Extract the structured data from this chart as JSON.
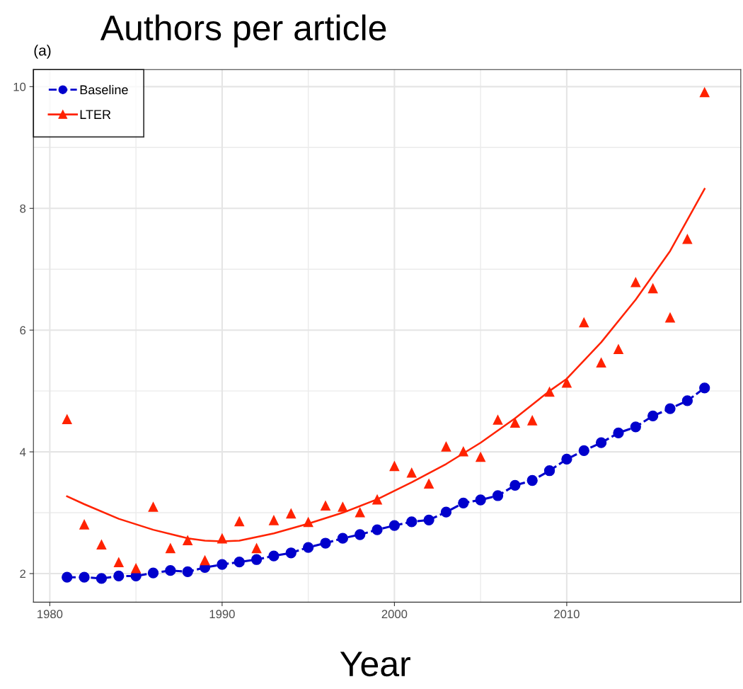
{
  "chart_data": {
    "type": "line",
    "title": "Authors per article",
    "xlabel": "Year",
    "annotations": [
      "(a)"
    ],
    "xlim": [
      1979.05,
      2020.1
    ],
    "ylim": [
      1.53,
      10.28
    ],
    "xticks": [
      1980,
      1990,
      2000,
      2010
    ],
    "yticks": [
      2,
      4,
      6,
      8,
      10
    ],
    "grid": true,
    "legend": "top left",
    "series": [
      {
        "name": "Baseline",
        "type": "line",
        "color": "#0000cc",
        "marker": "circle",
        "line_style": "dashed",
        "x": [
          1981,
          1982,
          1983,
          1984,
          1985,
          1986,
          1987,
          1988,
          1989,
          1990,
          1991,
          1992,
          1993,
          1994,
          1995,
          1996,
          1997,
          1998,
          1999,
          2000,
          2001,
          2002,
          2003,
          2004,
          2005,
          2006,
          2007,
          2008,
          2009,
          2010,
          2011,
          2012,
          2013,
          2014,
          2015,
          2016,
          2017,
          2018
        ],
        "values": [
          1.94,
          1.94,
          1.92,
          1.96,
          1.96,
          2.01,
          2.05,
          2.03,
          2.1,
          2.15,
          2.19,
          2.23,
          2.29,
          2.34,
          2.43,
          2.5,
          2.58,
          2.64,
          2.72,
          2.79,
          2.85,
          2.88,
          3.01,
          3.16,
          3.21,
          3.28,
          3.45,
          3.53,
          3.69,
          3.88,
          4.02,
          4.15,
          4.31,
          4.41,
          4.59,
          4.71,
          4.84,
          5.05
        ]
      },
      {
        "name": "LTER",
        "type": "scatter",
        "color": "#ff2200",
        "marker": "triangle",
        "x": [
          1981,
          1982,
          1983,
          1984,
          1985,
          1986,
          1987,
          1988,
          1989,
          1990,
          1991,
          1992,
          1993,
          1994,
          1995,
          1996,
          1997,
          1998,
          1999,
          2000,
          2001,
          2002,
          2003,
          2004,
          2005,
          2006,
          2007,
          2008,
          2009,
          2010,
          2011,
          2012,
          2013,
          2014,
          2015,
          2016,
          2017,
          2018
        ],
        "values": [
          4.54,
          2.81,
          2.48,
          2.19,
          2.09,
          3.1,
          2.42,
          2.55,
          2.22,
          2.58,
          2.86,
          2.42,
          2.88,
          2.99,
          2.85,
          3.12,
          3.1,
          3.01,
          3.22,
          3.77,
          3.66,
          3.48,
          4.09,
          4.01,
          3.92,
          4.53,
          4.48,
          4.52,
          4.99,
          5.14,
          6.13,
          5.47,
          5.69,
          6.79,
          6.69,
          6.21,
          7.5,
          9.91
        ]
      },
      {
        "color": "#ff2200",
        "marker": "none",
        "line_style": "solid",
        "x": [
          1981,
          1982,
          1984,
          1986,
          1988,
          1989,
          1990,
          1991,
          1993,
          1995,
          1997,
          1999,
          2001,
          2003,
          2005,
          2007,
          2009,
          2010,
          2012,
          2014,
          2016,
          2018
        ],
        "values": [
          3.27,
          3.14,
          2.9,
          2.72,
          2.58,
          2.54,
          2.53,
          2.54,
          2.66,
          2.82,
          3.0,
          3.22,
          3.5,
          3.8,
          4.15,
          4.55,
          5.0,
          5.2,
          5.8,
          6.5,
          7.3,
          8.32
        ]
      }
    ]
  }
}
